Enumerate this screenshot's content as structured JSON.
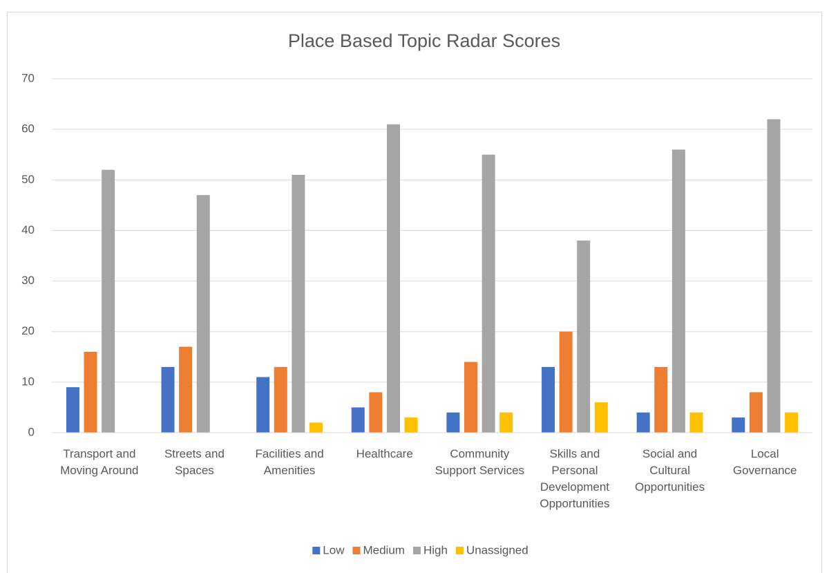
{
  "chart_data": {
    "type": "bar",
    "title": "Place Based Topic Radar Scores",
    "categories": [
      "Transport and Moving Around",
      "Streets and Spaces",
      "Facilities and Amenities",
      "Healthcare",
      "Community Support Services",
      "Skills and Personal Development Opportunities",
      "Social and Cultural Opportunities",
      "Local Governance"
    ],
    "series": [
      {
        "name": "Low",
        "color": "#4472c4",
        "values": [
          9,
          13,
          11,
          5,
          4,
          13,
          4,
          3
        ]
      },
      {
        "name": "Medium",
        "color": "#ed7d31",
        "values": [
          16,
          17,
          13,
          8,
          14,
          20,
          13,
          8
        ]
      },
      {
        "name": "High",
        "color": "#a5a5a5",
        "values": [
          52,
          47,
          51,
          61,
          55,
          38,
          56,
          62
        ]
      },
      {
        "name": "Unassigned",
        "color": "#ffc000",
        "values": [
          0,
          0,
          2,
          3,
          4,
          6,
          4,
          4
        ]
      }
    ],
    "ylim": [
      0,
      70
    ],
    "yticks": [
      0,
      10,
      20,
      30,
      40,
      50,
      60,
      70
    ],
    "grid": true,
    "legend": "bottom"
  }
}
